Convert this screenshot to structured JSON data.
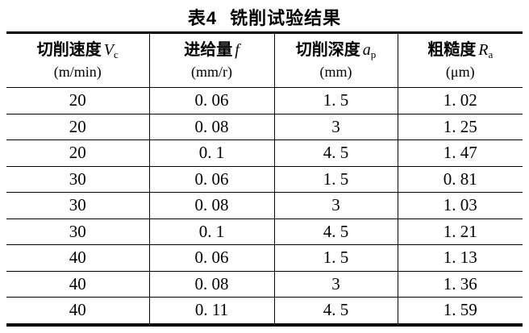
{
  "page": {
    "background": "#ffffff",
    "text_color": "#000000",
    "rule_color": "#000000"
  },
  "title": {
    "label": "表4",
    "text": "铣削试验结果"
  },
  "table": {
    "columns": [
      {
        "name_cn": "切削速度",
        "symbol": "V",
        "subscript": "c",
        "unit": "(m/min)"
      },
      {
        "name_cn": "进给量",
        "symbol": "f",
        "subscript": "",
        "unit": "(mm/r)"
      },
      {
        "name_cn": "切削深度",
        "symbol": "a",
        "subscript": "p",
        "unit": "(mm)"
      },
      {
        "name_cn": "粗糙度",
        "symbol": "R",
        "subscript": "a",
        "unit": "(μm)"
      }
    ],
    "rows": [
      [
        "20",
        "0. 06",
        "1. 5",
        "1. 02"
      ],
      [
        "20",
        "0. 08",
        "3",
        "1. 25"
      ],
      [
        "20",
        "0. 1",
        "4. 5",
        "1. 47"
      ],
      [
        "30",
        "0. 06",
        "1. 5",
        "0. 81"
      ],
      [
        "30",
        "0. 08",
        "3",
        "1. 03"
      ],
      [
        "30",
        "0. 1",
        "4. 5",
        "1. 21"
      ],
      [
        "40",
        "0. 06",
        "1. 5",
        "1. 13"
      ],
      [
        "40",
        "0. 08",
        "3",
        "1. 36"
      ],
      [
        "40",
        "0. 11",
        "4. 5",
        "1. 59"
      ]
    ]
  },
  "chart_data": {
    "type": "table",
    "title": "表4 铣削试验结果",
    "columns": [
      "切削速度 Vc (m/min)",
      "进给量 f (mm/r)",
      "切削深度 ap (mm)",
      "粗糙度 Ra (μm)"
    ],
    "rows": [
      [
        20,
        0.06,
        1.5,
        1.02
      ],
      [
        20,
        0.08,
        3,
        1.25
      ],
      [
        20,
        0.1,
        4.5,
        1.47
      ],
      [
        30,
        0.06,
        1.5,
        0.81
      ],
      [
        30,
        0.08,
        3,
        1.03
      ],
      [
        30,
        0.1,
        4.5,
        1.21
      ],
      [
        40,
        0.06,
        1.5,
        1.13
      ],
      [
        40,
        0.08,
        3,
        1.36
      ],
      [
        40,
        0.11,
        4.5,
        1.59
      ]
    ]
  }
}
